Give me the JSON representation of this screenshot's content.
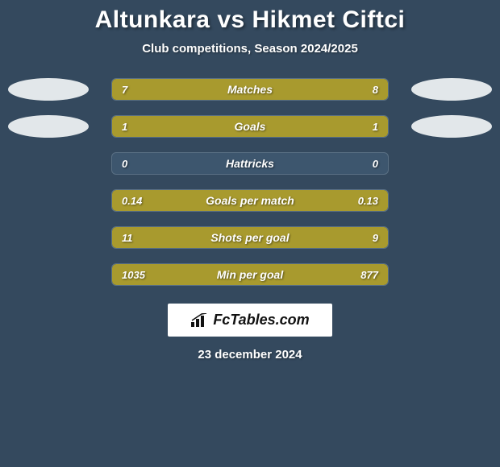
{
  "title": "Altunkara vs Hikmet Ciftci",
  "subtitle": "Club competitions, Season 2024/2025",
  "date": "23 december 2024",
  "brand": "FcTables.com",
  "colors": {
    "background": "#34495e",
    "bar_bg": "#3d566e",
    "left_fill": "#a89a2e",
    "right_fill": "#a89a2e",
    "ellipse": "#ecf0f1",
    "text": "#ffffff"
  },
  "stats": [
    {
      "label": "Matches",
      "left_val": "7",
      "right_val": "8",
      "left_pct": 47,
      "right_pct": 53,
      "show_ellipses": true
    },
    {
      "label": "Goals",
      "left_val": "1",
      "right_val": "1",
      "left_pct": 50,
      "right_pct": 50,
      "show_ellipses": true
    },
    {
      "label": "Hattricks",
      "left_val": "0",
      "right_val": "0",
      "left_pct": 0,
      "right_pct": 0,
      "show_ellipses": false
    },
    {
      "label": "Goals per match",
      "left_val": "0.14",
      "right_val": "0.13",
      "left_pct": 52,
      "right_pct": 48,
      "show_ellipses": false
    },
    {
      "label": "Shots per goal",
      "left_val": "11",
      "right_val": "9",
      "left_pct": 55,
      "right_pct": 45,
      "show_ellipses": false
    },
    {
      "label": "Min per goal",
      "left_val": "1035",
      "right_val": "877",
      "left_pct": 54,
      "right_pct": 46,
      "show_ellipses": false
    }
  ]
}
